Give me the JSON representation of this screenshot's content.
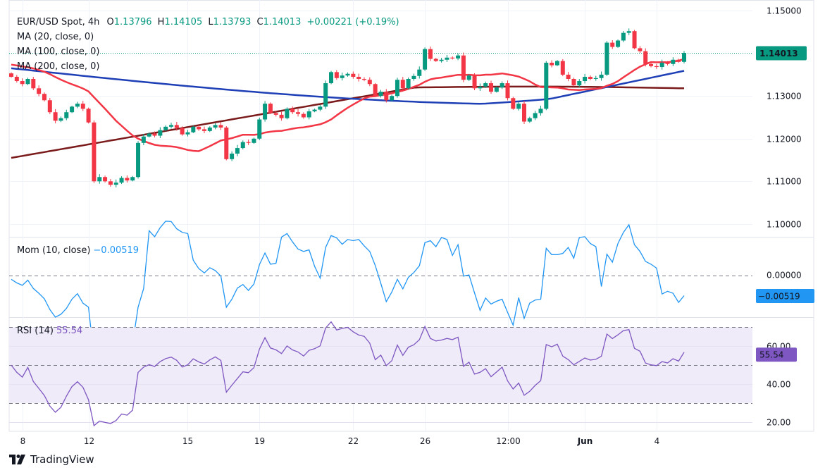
{
  "header": {
    "symbol": "EUR/USD Spot, 4h",
    "open_label": "O",
    "open": "1.13796",
    "high_label": "H",
    "high": "1.14105",
    "low_label": "L",
    "low": "1.13793",
    "close_label": "C",
    "close": "1.14013",
    "change": "+0.00221 (+0.19%)"
  },
  "indicators": {
    "ma20": "MA (20, close, 0)",
    "ma100": "MA (100, close, 0)",
    "ma200": "MA (200, close, 0)",
    "mom_label": "Mom (10, close)",
    "mom_value": "−0.00519",
    "rsi_label": "RSI (14)",
    "rsi_value": "55.54"
  },
  "brand": {
    "name": "TradingView"
  },
  "colors": {
    "up": "#089981",
    "down": "#f23645",
    "ma20": "#f23645",
    "ma100": "#1e3fb5",
    "ma200": "#7b1a1a",
    "mom": "#2196f3",
    "rsi": "#7e57c2",
    "rsi_band": "#efebf8",
    "price_tag": "#089981",
    "mom_tag": "#2196f3",
    "rsi_tag": "#7e57c2"
  },
  "chart_data": [
    {
      "type": "candlestick",
      "title": "EUR/USD Spot, 4h",
      "ylim": [
        1.097,
        1.1525
      ],
      "yticks": [
        "1.15000",
        "1.13000",
        "1.12000",
        "1.11000",
        "1.10000"
      ],
      "ytick_values": [
        1.15,
        1.13,
        1.12,
        1.11,
        1.1
      ],
      "last_price": "1.14013",
      "xticks": [
        "8",
        "12",
        "15",
        "19",
        "22",
        "26",
        "12:00",
        "Jun",
        "4"
      ],
      "xtick_index": [
        2,
        14,
        32,
        45,
        62,
        75,
        90,
        104,
        117
      ],
      "close": [
        1.1345,
        1.1335,
        1.1328,
        1.134,
        1.1318,
        1.1305,
        1.129,
        1.1262,
        1.1242,
        1.1248,
        1.1262,
        1.1275,
        1.1282,
        1.127,
        1.1238,
        1.11,
        1.111,
        1.11,
        1.1092,
        1.1097,
        1.1108,
        1.1102,
        1.111,
        1.119,
        1.1205,
        1.1212,
        1.1207,
        1.122,
        1.1228,
        1.1232,
        1.1225,
        1.121,
        1.1215,
        1.1228,
        1.1222,
        1.1218,
        1.1226,
        1.1232,
        1.1226,
        1.1152,
        1.1165,
        1.1178,
        1.1192,
        1.119,
        1.12,
        1.1245,
        1.1282,
        1.126,
        1.1256,
        1.1248,
        1.127,
        1.1262,
        1.1258,
        1.125,
        1.1264,
        1.1268,
        1.1275,
        1.133,
        1.1356,
        1.1342,
        1.1348,
        1.1352,
        1.1345,
        1.134,
        1.1338,
        1.1328,
        1.13,
        1.131,
        1.129,
        1.13,
        1.1338,
        1.1318,
        1.134,
        1.1347,
        1.1362,
        1.141,
        1.1387,
        1.1382,
        1.1385,
        1.139,
        1.1388,
        1.1395,
        1.1338,
        1.1348,
        1.1318,
        1.1322,
        1.133,
        1.131,
        1.132,
        1.133,
        1.1295,
        1.127,
        1.1282,
        1.124,
        1.1248,
        1.126,
        1.127,
        1.1378,
        1.1372,
        1.1382,
        1.135,
        1.134,
        1.1325,
        1.1335,
        1.1345,
        1.134,
        1.1342,
        1.135,
        1.1425,
        1.1415,
        1.143,
        1.1448,
        1.1452,
        1.1412,
        1.1405,
        1.1375,
        1.137,
        1.1368,
        1.1378,
        1.1375,
        1.1385,
        1.138,
        1.1401
      ]
    },
    {
      "type": "line",
      "title": "Mom (10, close)",
      "ylim": [
        -0.0105,
        0.0095
      ],
      "yticks": [
        "0.00000"
      ],
      "last_value": "-0.00519"
    },
    {
      "type": "line",
      "title": "RSI (14)",
      "ylim": [
        15,
        75
      ],
      "yticks": [
        "60.00",
        "40.00",
        "20.00"
      ],
      "bands": [
        30,
        50,
        70
      ],
      "last_value": "55.54"
    }
  ]
}
